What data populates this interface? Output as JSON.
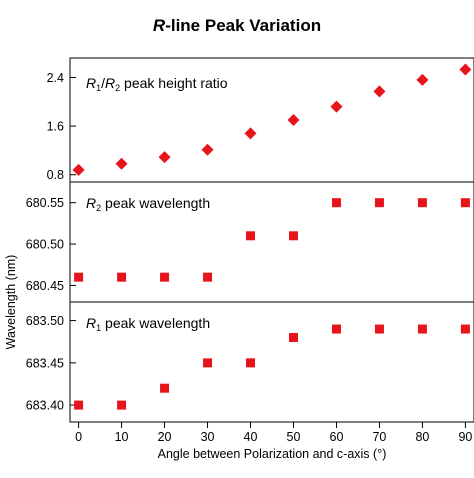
{
  "chart_data": {
    "type": "scatter",
    "title": {
      "italic": "R",
      "rest": "-line Peak Variation"
    },
    "xlabel": "Angle between Polarization and c-axis (°)",
    "ylabel": "Wavelength (nm)",
    "x_ticks": [
      "0",
      "10",
      "20",
      "30",
      "40",
      "50",
      "60",
      "70",
      "80",
      "90"
    ],
    "xlim": [
      -2,
      92
    ],
    "marker_color": "#e8141c",
    "panels": [
      {
        "label": {
          "s1": "R",
          "sub1": "1",
          "s2": "/",
          "s3": "R",
          "sub2": "2",
          "s4": " peak height ratio"
        },
        "marker": "diamond",
        "ylim": [
          0.68,
          2.72
        ],
        "y_ticks": [
          0.8,
          1.6,
          2.4
        ],
        "y_tick_labels": [
          "0.8",
          "1.6",
          "2.4"
        ],
        "x": [
          0,
          10,
          20,
          30,
          40,
          50,
          60,
          70,
          80,
          90
        ],
        "y": [
          0.88,
          0.98,
          1.09,
          1.21,
          1.48,
          1.7,
          1.92,
          2.17,
          2.36,
          2.53
        ]
      },
      {
        "label": {
          "s1": "R",
          "sub1": "2",
          "s2": " peak wavelength"
        },
        "marker": "square",
        "ylim": [
          680.43,
          680.575
        ],
        "y_ticks": [
          680.45,
          680.5,
          680.55
        ],
        "y_tick_labels": [
          "680.45",
          "680.50",
          "680.55"
        ],
        "x": [
          0,
          10,
          20,
          30,
          40,
          50,
          60,
          70,
          80,
          90
        ],
        "y": [
          680.46,
          680.46,
          680.46,
          680.46,
          680.51,
          680.51,
          680.55,
          680.55,
          680.55,
          680.55
        ]
      },
      {
        "label": {
          "s1": "R",
          "sub1": "1",
          "s2": " peak wavelength"
        },
        "marker": "square",
        "ylim": [
          683.38,
          683.522
        ],
        "y_ticks": [
          683.4,
          683.45,
          683.5
        ],
        "y_tick_labels": [
          "683.40",
          "683.45",
          "683.50"
        ],
        "x": [
          0,
          10,
          20,
          30,
          40,
          50,
          60,
          70,
          80,
          90
        ],
        "y": [
          683.4,
          683.4,
          683.42,
          683.45,
          683.45,
          683.48,
          683.49,
          683.49,
          683.49,
          683.49
        ]
      }
    ]
  }
}
